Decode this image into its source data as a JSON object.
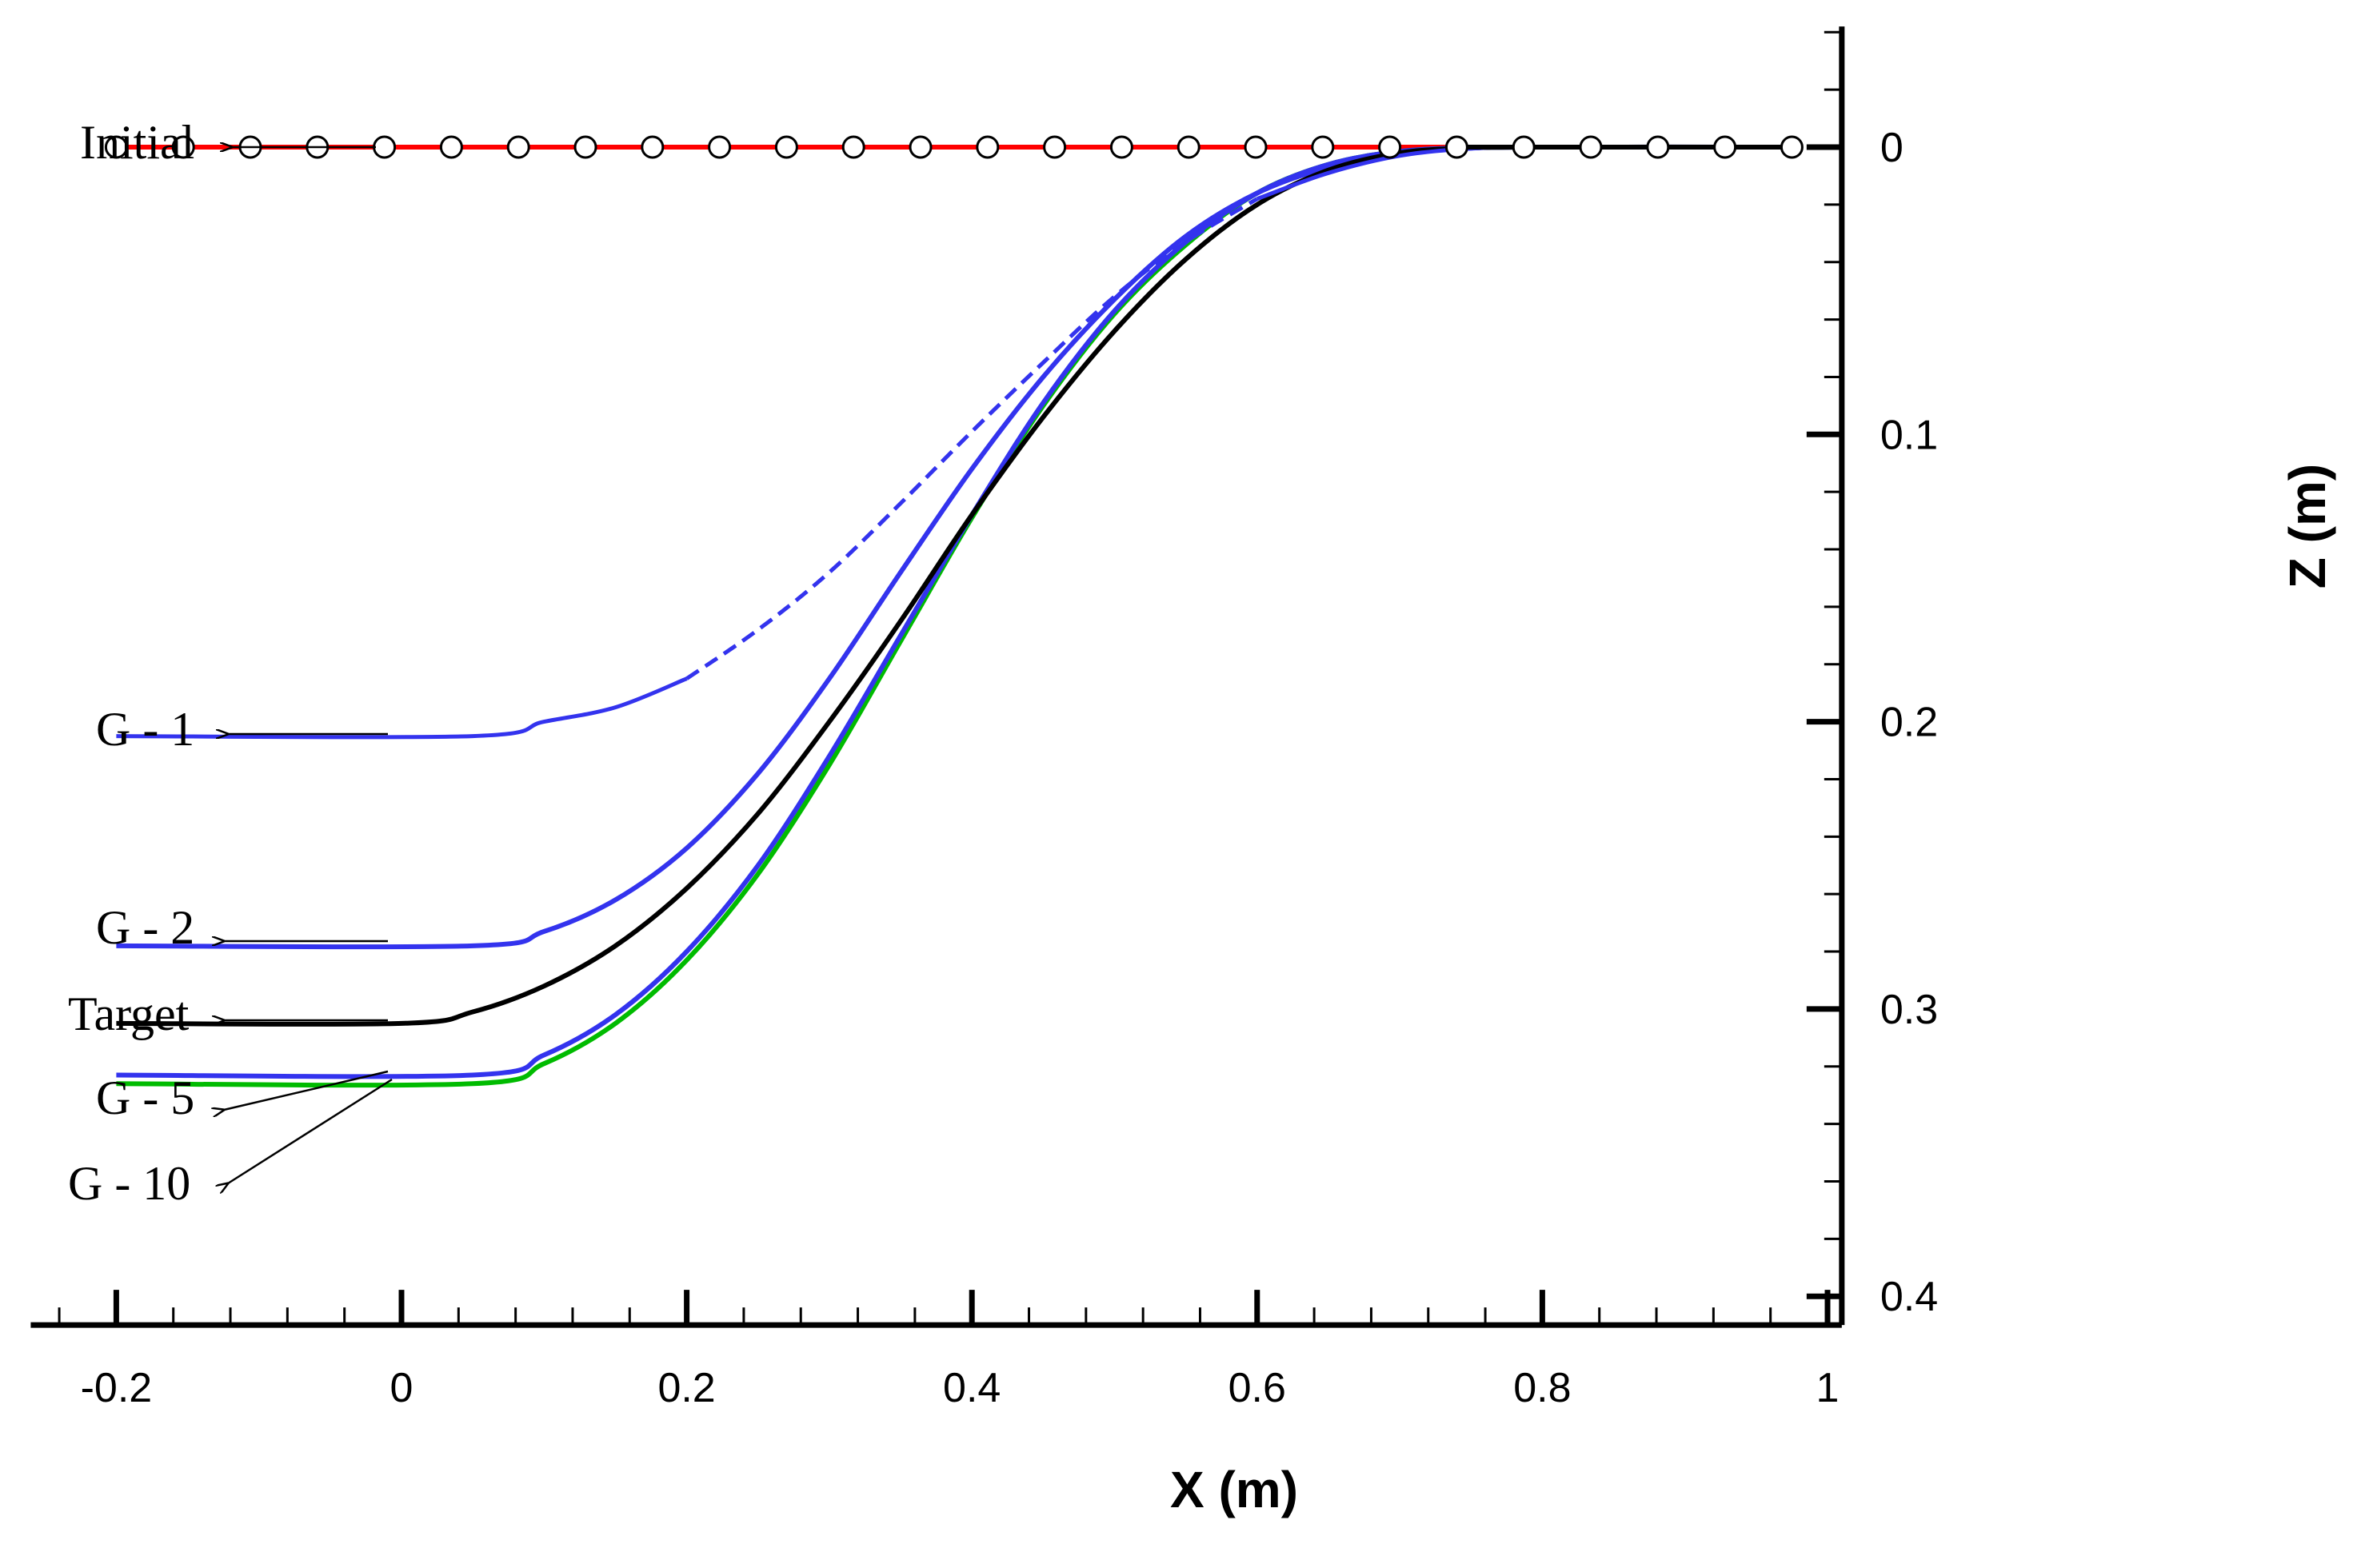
{
  "chart_data": {
    "type": "line",
    "title": "",
    "xlabel": "X (m)",
    "ylabel": "Z (m)",
    "xlim": [
      -0.26,
      1.01
    ],
    "ylim": [
      -0.042,
      0.41
    ],
    "y_axis_inverted": true,
    "y_axis_position": "right",
    "grid": false,
    "x_ticks": [
      -0.2,
      0,
      0.2,
      0.4,
      0.6,
      0.8,
      1
    ],
    "x_tick_labels": [
      "-0.2",
      "0",
      "0.2",
      "0.4",
      "0.6",
      "0.8",
      "1"
    ],
    "y_ticks": [
      0,
      0.1,
      0.2,
      0.3,
      0.4
    ],
    "y_tick_labels": [
      "0",
      "0.1",
      "0.2",
      "0.3",
      "0.4"
    ],
    "series": [
      {
        "name": "Initial",
        "label": "Initial",
        "color": "#ff0000",
        "markers": "open-circle",
        "x": [
          -0.2,
          -0.153,
          -0.106,
          -0.059,
          -0.012,
          0.035,
          0.082,
          0.129,
          0.176,
          0.223,
          0.27,
          0.317,
          0.364,
          0.411,
          0.458,
          0.505,
          0.552,
          0.599,
          0.646,
          0.693,
          0.74,
          0.787,
          0.834,
          0.881,
          0.928,
          0.975
        ],
        "y": [
          0,
          0,
          0,
          0,
          0,
          0,
          0,
          0,
          0,
          0,
          0,
          0,
          0,
          0,
          0,
          0,
          0,
          0,
          0,
          0,
          0,
          0,
          0,
          0,
          0,
          0
        ]
      },
      {
        "name": "G - 1",
        "label": "G - 1",
        "color": "#3333ee",
        "dashed_segment_x": [
          0.2,
          0.6
        ],
        "x": [
          -0.2,
          0.05,
          0.1,
          0.15,
          0.2,
          0.25,
          0.3,
          0.35,
          0.4,
          0.45,
          0.5,
          0.55,
          0.6,
          0.65,
          0.7,
          0.75,
          0.8,
          0.975
        ],
        "y": [
          0.205,
          0.205,
          0.2,
          0.195,
          0.185,
          0.168,
          0.148,
          0.124,
          0.099,
          0.075,
          0.052,
          0.033,
          0.018,
          0.009,
          0.003,
          0.0005,
          0,
          0
        ]
      },
      {
        "name": "G - 2",
        "label": "G - 2",
        "color": "#3333ee",
        "x": [
          -0.2,
          0.05,
          0.1,
          0.15,
          0.2,
          0.25,
          0.3,
          0.35,
          0.4,
          0.45,
          0.5,
          0.55,
          0.6,
          0.65,
          0.7,
          0.75,
          0.8,
          0.975
        ],
        "y": [
          0.278,
          0.278,
          0.273,
          0.262,
          0.244,
          0.218,
          0.185,
          0.148,
          0.112,
          0.08,
          0.053,
          0.031,
          0.016,
          0.007,
          0.002,
          0.0003,
          0,
          0
        ]
      },
      {
        "name": "Target",
        "label": "Target",
        "color": "#000000",
        "x": [
          -0.2,
          0.0,
          0.05,
          0.1,
          0.15,
          0.2,
          0.25,
          0.3,
          0.35,
          0.4,
          0.45,
          0.5,
          0.55,
          0.6,
          0.65,
          0.7,
          0.75,
          0.8,
          0.975
        ],
        "y": [
          0.305,
          0.305,
          0.301,
          0.292,
          0.278,
          0.258,
          0.232,
          0.2,
          0.165,
          0.128,
          0.094,
          0.064,
          0.039,
          0.02,
          0.008,
          0.002,
          0.0003,
          0,
          0
        ]
      },
      {
        "name": "G - 5",
        "label": "G - 5",
        "color": "#3333ee",
        "x": [
          -0.2,
          0.05,
          0.1,
          0.15,
          0.2,
          0.25,
          0.3,
          0.35,
          0.4,
          0.45,
          0.5,
          0.55,
          0.6,
          0.65,
          0.7,
          0.75,
          0.8,
          0.975
        ],
        "y": [
          0.323,
          0.323,
          0.316,
          0.302,
          0.28,
          0.25,
          0.212,
          0.17,
          0.128,
          0.089,
          0.057,
          0.033,
          0.016,
          0.006,
          0.0015,
          0.0002,
          0,
          0
        ]
      },
      {
        "name": "G - 10",
        "label": "G - 10",
        "color": "#00bb00",
        "x": [
          -0.2,
          0.05,
          0.1,
          0.15,
          0.2,
          0.25,
          0.3,
          0.35,
          0.4,
          0.45,
          0.5,
          0.55,
          0.6,
          0.65,
          0.7,
          0.75,
          0.8,
          0.975
        ],
        "y": [
          0.326,
          0.326,
          0.319,
          0.305,
          0.283,
          0.253,
          0.215,
          0.172,
          0.129,
          0.09,
          0.058,
          0.034,
          0.016,
          0.006,
          0.0015,
          0.0002,
          0,
          0
        ]
      }
    ]
  }
}
